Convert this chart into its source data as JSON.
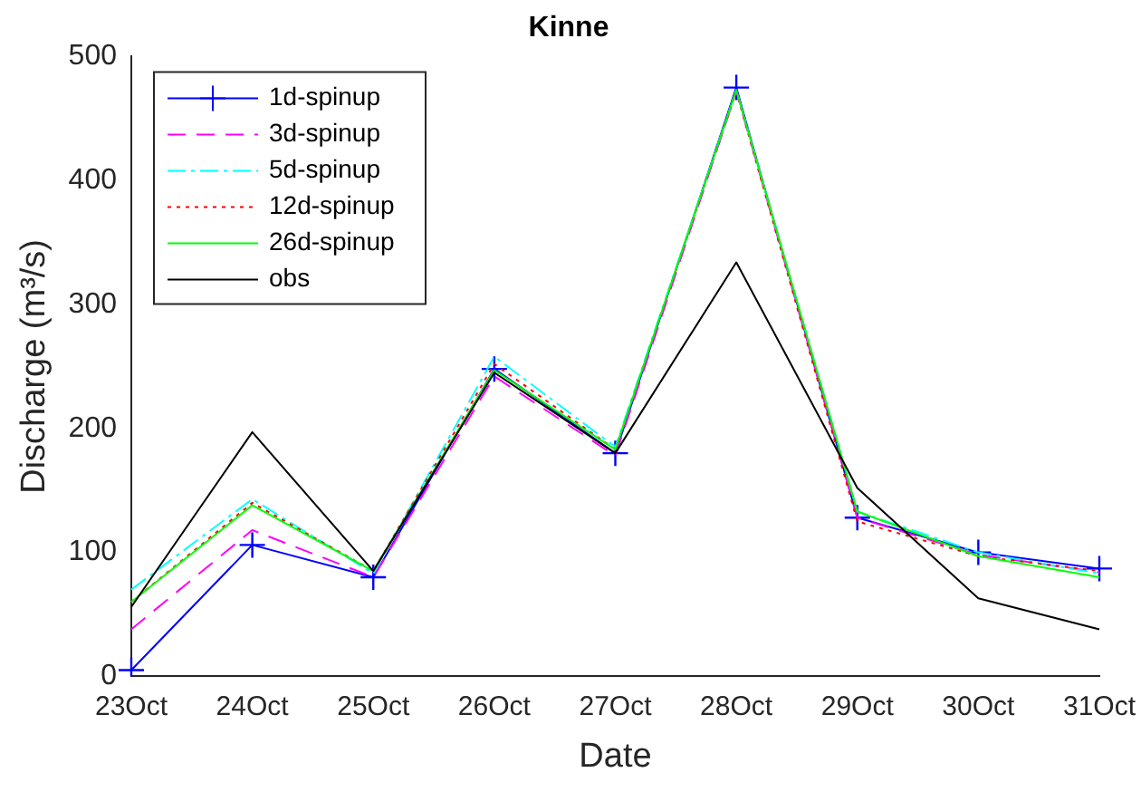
{
  "chart_data": {
    "type": "line",
    "title": "Kinne",
    "xlabel": "Date",
    "ylabel": "Discharge (m³/s)",
    "categories": [
      "23Oct",
      "24Oct",
      "25Oct",
      "26Oct",
      "27Oct",
      "28Oct",
      "29Oct",
      "30Oct",
      "31Oct"
    ],
    "ylim": [
      0,
      500
    ],
    "yticks": [
      0,
      100,
      200,
      300,
      400,
      500
    ],
    "grid": false,
    "legend": "top left",
    "series": [
      {
        "name": "1d-spinup",
        "color": "#0000ff",
        "marker": "cross",
        "line_style": "solid",
        "values": [
          5,
          106,
          80,
          248,
          180,
          475,
          128,
          100,
          87
        ]
      },
      {
        "name": "3d-spinup",
        "color": "#ff00ff",
        "marker": "none",
        "line_style": "dashed",
        "values": [
          38,
          118,
          80,
          242,
          178,
          472,
          128,
          98,
          84
        ]
      },
      {
        "name": "5d-spinup",
        "color": "#00ffff",
        "marker": "none",
        "line_style": "dashdot",
        "values": [
          70,
          143,
          83,
          258,
          185,
          473,
          133,
          100,
          83
        ]
      },
      {
        "name": "12d-spinup",
        "color": "#ff0000",
        "marker": "none",
        "line_style": "dotted",
        "values": [
          60,
          140,
          85,
          252,
          183,
          472,
          125,
          97,
          85
        ]
      },
      {
        "name": "26d-spinup",
        "color": "#00ff00",
        "marker": "none",
        "line_style": "solid",
        "values": [
          60,
          138,
          85,
          247,
          183,
          473,
          133,
          97,
          80
        ]
      },
      {
        "name": "obs",
        "color": "#000000",
        "marker": "none",
        "line_style": "solid",
        "values": [
          56,
          197,
          85,
          245,
          180,
          334,
          152,
          63,
          38
        ]
      }
    ]
  }
}
